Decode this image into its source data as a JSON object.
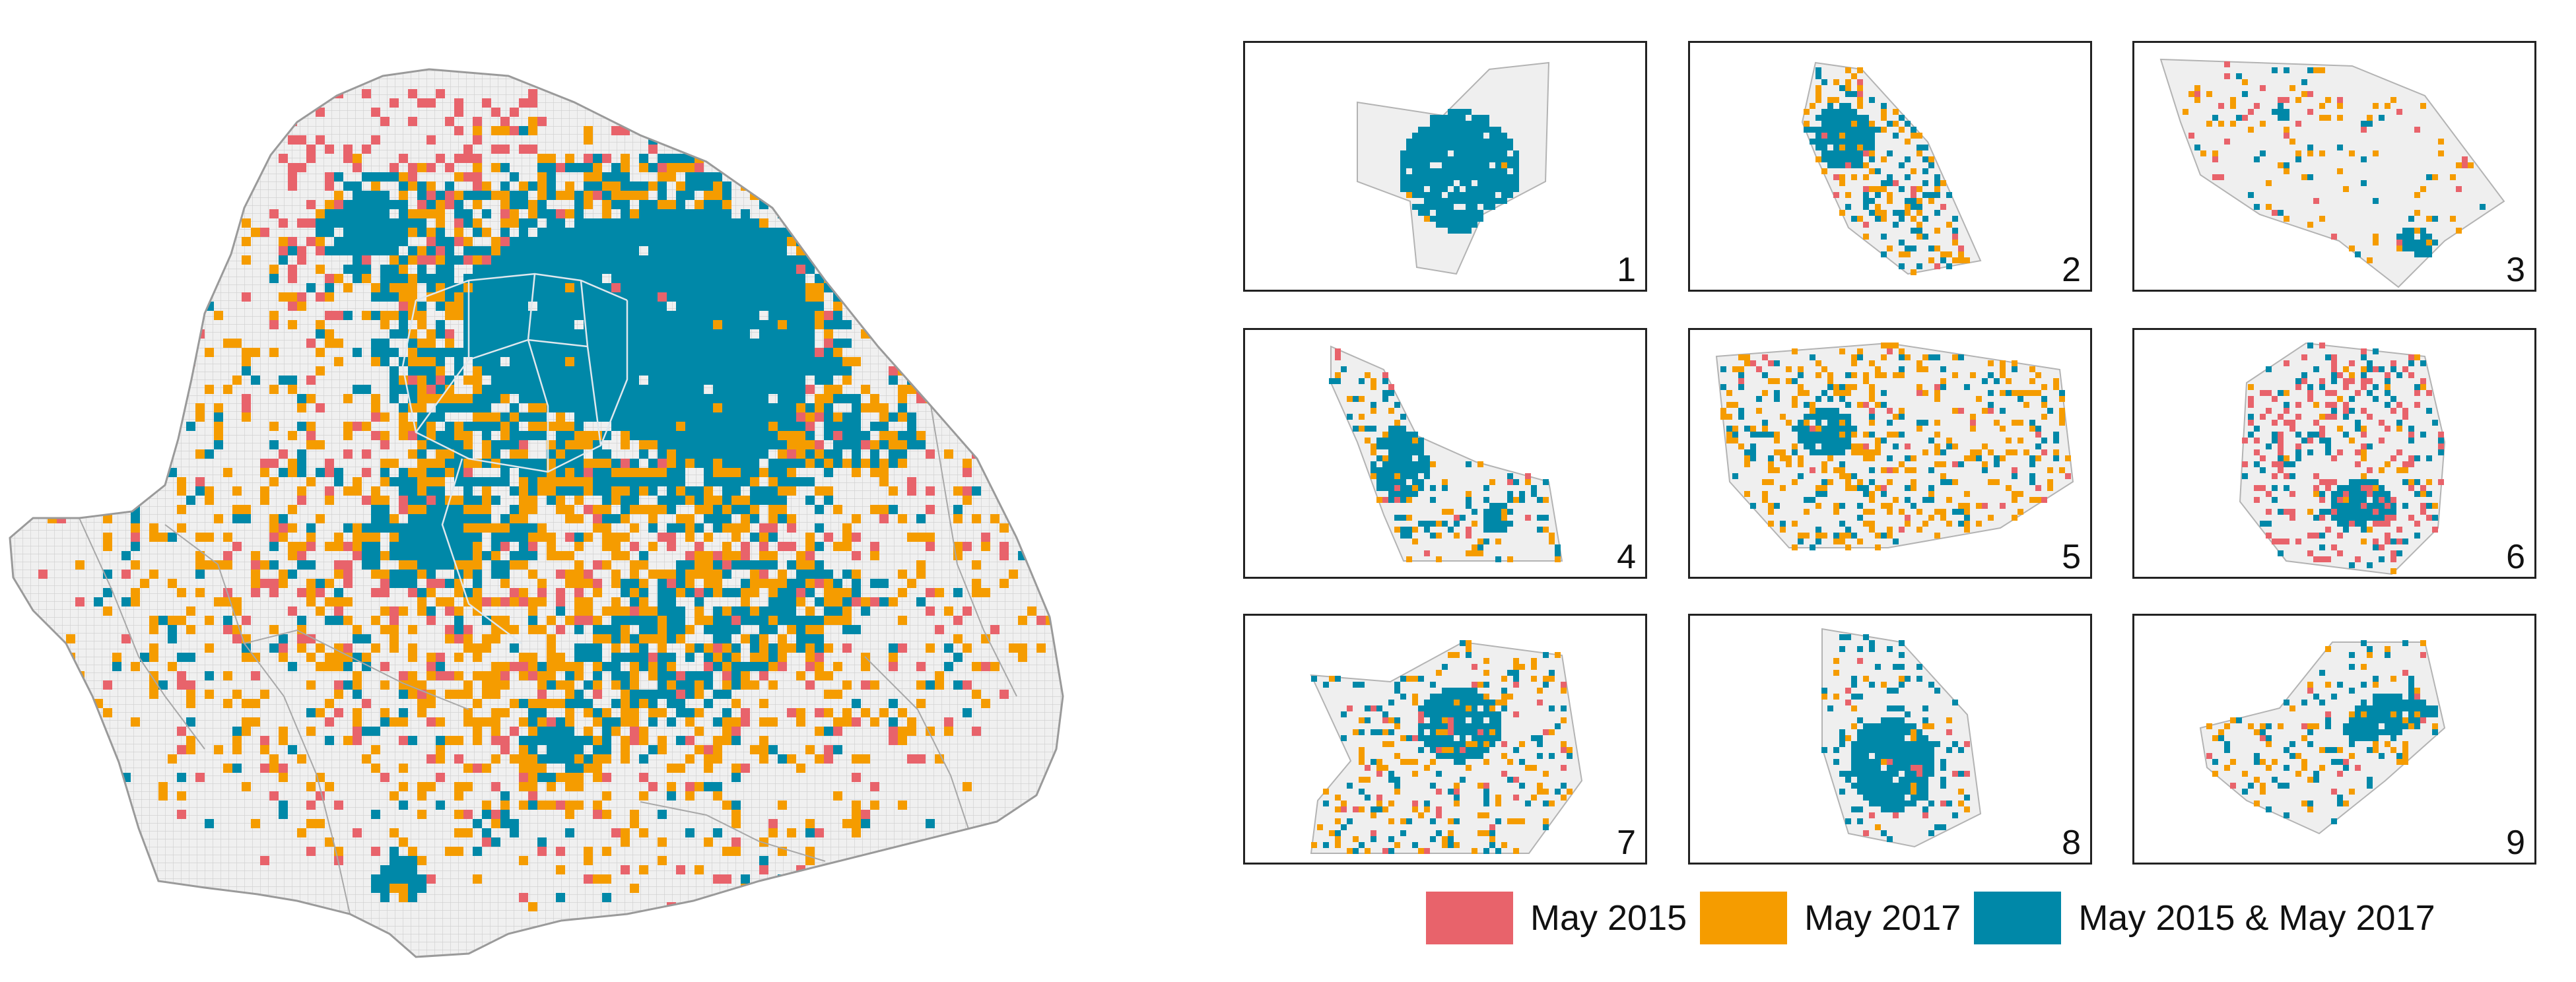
{
  "colors": {
    "may_2015": "#E8636B",
    "may_2017": "#F59C00",
    "both": "#0088A8",
    "grid": "#d4d4d4",
    "region_fill": "#efefef",
    "region_edge": "#b3b3b3",
    "panel_border": "#222222"
  },
  "legend": [
    {
      "color_key": "may_2015",
      "label": "May 2015"
    },
    {
      "color_key": "may_2017",
      "label": "May 2017"
    },
    {
      "color_key": "both",
      "label": "May 2015 & May 2017"
    }
  ],
  "panels": [
    {
      "number": "1"
    },
    {
      "number": "2"
    },
    {
      "number": "3"
    },
    {
      "number": "4"
    },
    {
      "number": "5"
    },
    {
      "number": "6"
    },
    {
      "number": "7"
    },
    {
      "number": "8"
    },
    {
      "number": "9"
    }
  ]
}
